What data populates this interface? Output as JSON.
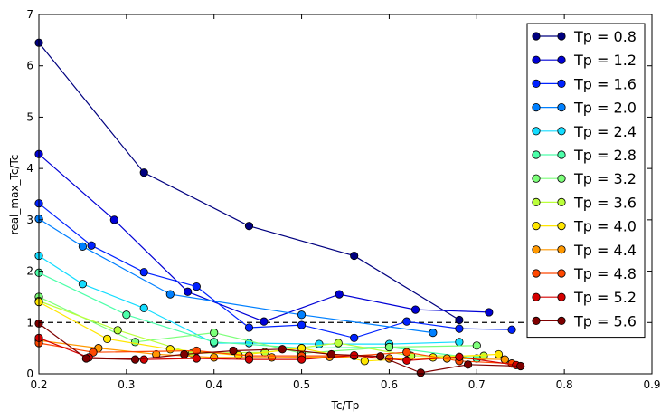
{
  "chart_data": {
    "type": "line",
    "title": "",
    "xlabel": "Tc/Tp",
    "ylabel": "real_max_Tc/Tc",
    "xlim": [
      0.2,
      0.9
    ],
    "ylim": [
      0,
      7
    ],
    "xticks": [
      "0.2",
      "0.3",
      "0.4",
      "0.5",
      "0.6",
      "0.7",
      "0.8",
      "0.9"
    ],
    "yticks": [
      "0",
      "1",
      "2",
      "3",
      "4",
      "5",
      "6",
      "7"
    ],
    "grid": false,
    "legend_position": "top-right",
    "reference_line": {
      "y": 1,
      "style": "dashed",
      "color": "#000000"
    },
    "series": [
      {
        "name": "Tp = 0.8",
        "color": "#00007f",
        "x": [
          0.2,
          0.32,
          0.44,
          0.56,
          0.68
        ],
        "y": [
          6.45,
          3.92,
          2.88,
          2.3,
          1.05
        ]
      },
      {
        "name": "Tp = 1.2",
        "color": "#0000d5",
        "x": [
          0.2,
          0.286,
          0.37,
          0.457,
          0.543,
          0.63,
          0.714
        ],
        "y": [
          4.28,
          3.0,
          1.6,
          1.02,
          1.55,
          1.25,
          1.2
        ]
      },
      {
        "name": "Tp = 1.6",
        "color": "#0022ff",
        "x": [
          0.2,
          0.26,
          0.32,
          0.38,
          0.44,
          0.5,
          0.56,
          0.62,
          0.68,
          0.74
        ],
        "y": [
          3.32,
          2.5,
          1.98,
          1.7,
          0.9,
          0.95,
          0.7,
          1.02,
          0.88,
          0.86
        ]
      },
      {
        "name": "Tp = 2.0",
        "color": "#0080ff",
        "x": [
          0.2,
          0.25,
          0.35,
          0.5,
          0.65
        ],
        "y": [
          3.02,
          2.48,
          1.55,
          1.15,
          0.8
        ]
      },
      {
        "name": "Tp = 2.4",
        "color": "#14dcff",
        "x": [
          0.2,
          0.25,
          0.32,
          0.4,
          0.44,
          0.52,
          0.6,
          0.68
        ],
        "y": [
          2.3,
          1.75,
          1.28,
          0.6,
          0.6,
          0.58,
          0.58,
          0.62
        ]
      },
      {
        "name": "Tp = 2.8",
        "color": "#4dffaa",
        "x": [
          0.2,
          0.3,
          0.4,
          0.5,
          0.6,
          0.7
        ],
        "y": [
          1.97,
          1.15,
          0.62,
          0.5,
          0.52,
          0.3
        ]
      },
      {
        "name": "Tp = 3.2",
        "color": "#7dff7a",
        "x": [
          0.2,
          0.31,
          0.4,
          0.5,
          0.6,
          0.7
        ],
        "y": [
          1.5,
          0.62,
          0.8,
          0.4,
          0.52,
          0.55
        ]
      },
      {
        "name": "Tp = 3.6",
        "color": "#bbff3b",
        "x": [
          0.2,
          0.29,
          0.375,
          0.458,
          0.542,
          0.625,
          0.708
        ],
        "y": [
          1.42,
          0.85,
          0.4,
          0.42,
          0.6,
          0.35,
          0.35
        ]
      },
      {
        "name": "Tp = 4.0",
        "color": "#ffe600",
        "x": [
          0.2,
          0.278,
          0.35,
          0.428,
          0.5,
          0.572,
          0.65,
          0.725
        ],
        "y": [
          1.4,
          0.68,
          0.48,
          0.36,
          0.5,
          0.25,
          0.32,
          0.38
        ]
      },
      {
        "name": "Tp = 4.4",
        "color": "#ff9800",
        "x": [
          0.2,
          0.268,
          0.334,
          0.4,
          0.466,
          0.532,
          0.6,
          0.666,
          0.732
        ],
        "y": [
          0.65,
          0.5,
          0.38,
          0.32,
          0.32,
          0.33,
          0.3,
          0.3,
          0.28
        ]
      },
      {
        "name": "Tp = 4.8",
        "color": "#ff4800",
        "x": [
          0.2,
          0.262,
          0.38,
          0.44,
          0.5,
          0.56,
          0.62,
          0.68,
          0.74
        ],
        "y": [
          0.6,
          0.42,
          0.45,
          0.35,
          0.35,
          0.35,
          0.42,
          0.25,
          0.2
        ]
      },
      {
        "name": "Tp = 5.2",
        "color": "#d50000",
        "x": [
          0.2,
          0.257,
          0.32,
          0.38,
          0.44,
          0.5,
          0.56,
          0.62,
          0.68,
          0.745
        ],
        "y": [
          0.7,
          0.32,
          0.28,
          0.3,
          0.28,
          0.28,
          0.36,
          0.26,
          0.33,
          0.17
        ]
      },
      {
        "name": "Tp = 5.6",
        "color": "#7f0000",
        "x": [
          0.2,
          0.254,
          0.31,
          0.366,
          0.422,
          0.478,
          0.534,
          0.59,
          0.636,
          0.69,
          0.75
        ],
        "y": [
          0.98,
          0.3,
          0.28,
          0.38,
          0.45,
          0.48,
          0.38,
          0.34,
          0.02,
          0.18,
          0.15
        ]
      }
    ]
  }
}
